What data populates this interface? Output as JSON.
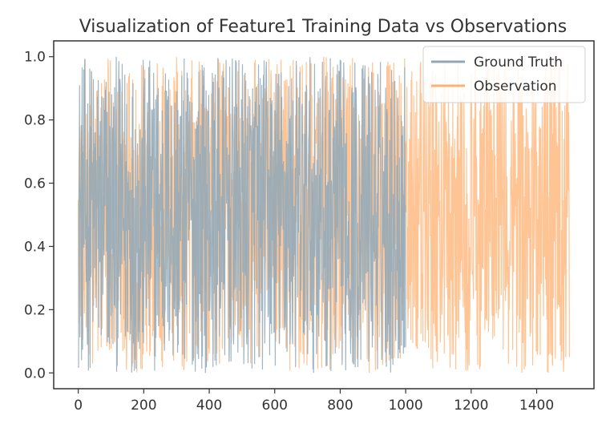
{
  "chart_data": {
    "type": "line",
    "title": "Visualization of Feature1 Training Data vs Observations",
    "xlabel": "",
    "ylabel": "",
    "xlim": [
      -75,
      1575
    ],
    "ylim": [
      -0.05,
      1.05
    ],
    "xticks": [
      0,
      200,
      400,
      600,
      800,
      1000,
      1200,
      1400
    ],
    "xtick_labels": [
      "0",
      "200",
      "400",
      "600",
      "800",
      "1000",
      "1200",
      "1400"
    ],
    "yticks": [
      0.0,
      0.2,
      0.4,
      0.6,
      0.8,
      1.0
    ],
    "ytick_labels": [
      "0.0",
      "0.2",
      "0.4",
      "0.6",
      "0.8",
      "1.0"
    ],
    "grid": false,
    "legend_position": "top-right",
    "series": [
      {
        "name": "Ground Truth",
        "color": "#8fa8b8",
        "opacity": 0.85,
        "x_range": [
          0,
          1000
        ],
        "count": 1000,
        "value_range": [
          0.0,
          1.0
        ],
        "pattern": "dense random noise"
      },
      {
        "name": "Observation",
        "color": "#ffb070",
        "opacity": 0.75,
        "x_range": [
          0,
          1500
        ],
        "count": 1500,
        "value_range": [
          0.0,
          1.0
        ],
        "pattern": "dense random noise"
      }
    ]
  }
}
